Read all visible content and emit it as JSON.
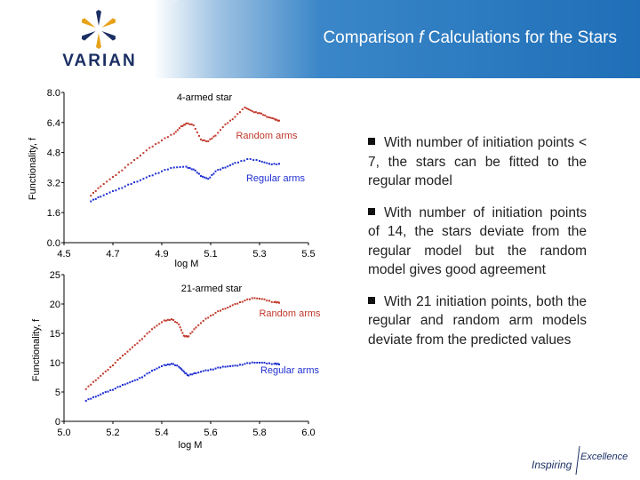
{
  "header": {
    "logo_text": "VARIAN",
    "title_pre": "Comparison ",
    "title_italic": "f",
    "title_post": " Calculations for the Stars"
  },
  "bullets": [
    "With number of initiation points < 7, the stars can be fitted to the regular model",
    "With number of initiation points of 14, the stars deviate from the regular model but the random model gives good agreement",
    "With 21 initiation points, both the regular and random arm models deviate from the predicted values"
  ],
  "footer": {
    "logo_text_1": "Inspiring",
    "logo_text_2": "Excellence"
  },
  "colors": {
    "random": "#c0392b",
    "regular": "#1f2fd0"
  },
  "chart_data": [
    {
      "type": "scatter",
      "title": "4-armed star",
      "xlabel": "log M",
      "ylabel": "Functionality, f",
      "xlim": [
        4.5,
        5.5
      ],
      "ylim": [
        0.0,
        8.0
      ],
      "xticks": [
        "4.5",
        "4.7",
        "4.9",
        "5.1",
        "5.3",
        "5.5"
      ],
      "yticks": [
        "0.0",
        "1.6",
        "3.2",
        "4.8",
        "6.4",
        "8.0"
      ],
      "series": [
        {
          "name": "Random arms",
          "color": "#c0392b",
          "points": [
            [
              4.61,
              2.5
            ],
            [
              4.65,
              3.0
            ],
            [
              4.7,
              3.5
            ],
            [
              4.75,
              4.0
            ],
            [
              4.8,
              4.5
            ],
            [
              4.85,
              5.05
            ],
            [
              4.9,
              5.45
            ],
            [
              4.95,
              5.8
            ],
            [
              4.98,
              6.2
            ],
            [
              5.0,
              6.35
            ],
            [
              5.03,
              6.25
            ],
            [
              5.06,
              5.5
            ],
            [
              5.09,
              5.4
            ],
            [
              5.12,
              5.7
            ],
            [
              5.16,
              6.3
            ],
            [
              5.2,
              6.7
            ],
            [
              5.24,
              7.2
            ],
            [
              5.27,
              7.0
            ],
            [
              5.3,
              6.9
            ],
            [
              5.33,
              6.7
            ],
            [
              5.36,
              6.6
            ],
            [
              5.38,
              6.5
            ]
          ]
        },
        {
          "name": "Regular arms",
          "color": "#1f2fd0",
          "points": [
            [
              4.61,
              2.2
            ],
            [
              4.65,
              2.45
            ],
            [
              4.7,
              2.75
            ],
            [
              4.75,
              3.0
            ],
            [
              4.8,
              3.25
            ],
            [
              4.85,
              3.55
            ],
            [
              4.9,
              3.8
            ],
            [
              4.95,
              4.0
            ],
            [
              5.0,
              4.05
            ],
            [
              5.03,
              3.9
            ],
            [
              5.06,
              3.55
            ],
            [
              5.09,
              3.4
            ],
            [
              5.12,
              3.8
            ],
            [
              5.16,
              4.0
            ],
            [
              5.2,
              4.25
            ],
            [
              5.25,
              4.45
            ],
            [
              5.3,
              4.35
            ],
            [
              5.34,
              4.2
            ],
            [
              5.38,
              4.2
            ]
          ]
        }
      ]
    },
    {
      "type": "scatter",
      "title": "21-armed star",
      "xlabel": "log M",
      "ylabel": "Functionality, f",
      "xlim": [
        5.0,
        6.0
      ],
      "ylim": [
        0,
        25
      ],
      "xticks": [
        "5.0",
        "5.2",
        "5.4",
        "5.6",
        "5.8",
        "6.0"
      ],
      "yticks": [
        "0",
        "5",
        "10",
        "15",
        "20",
        "25"
      ],
      "series": [
        {
          "name": "Random arms",
          "color": "#c0392b",
          "points": [
            [
              5.09,
              5.5
            ],
            [
              5.13,
              7.0
            ],
            [
              5.17,
              8.5
            ],
            [
              5.21,
              10.0
            ],
            [
              5.25,
              11.5
            ],
            [
              5.29,
              13.0
            ],
            [
              5.33,
              14.5
            ],
            [
              5.37,
              16.0
            ],
            [
              5.41,
              17.2
            ],
            [
              5.44,
              17.4
            ],
            [
              5.47,
              16.5
            ],
            [
              5.49,
              14.6
            ],
            [
              5.51,
              14.5
            ],
            [
              5.54,
              16.0
            ],
            [
              5.58,
              17.5
            ],
            [
              5.62,
              18.5
            ],
            [
              5.66,
              19.2
            ],
            [
              5.7,
              20.0
            ],
            [
              5.74,
              20.6
            ],
            [
              5.78,
              21.0
            ],
            [
              5.82,
              20.8
            ],
            [
              5.86,
              20.3
            ],
            [
              5.88,
              20.2
            ]
          ]
        },
        {
          "name": "Regular arms",
          "color": "#1f2fd0",
          "points": [
            [
              5.09,
              3.5
            ],
            [
              5.13,
              4.2
            ],
            [
              5.17,
              5.0
            ],
            [
              5.21,
              5.6
            ],
            [
              5.25,
              6.3
            ],
            [
              5.29,
              7.0
            ],
            [
              5.33,
              7.8
            ],
            [
              5.37,
              8.8
            ],
            [
              5.41,
              9.6
            ],
            [
              5.44,
              9.8
            ],
            [
              5.47,
              9.3
            ],
            [
              5.49,
              8.5
            ],
            [
              5.51,
              7.8
            ],
            [
              5.54,
              8.2
            ],
            [
              5.58,
              8.7
            ],
            [
              5.62,
              9.0
            ],
            [
              5.66,
              9.3
            ],
            [
              5.7,
              9.5
            ],
            [
              5.74,
              9.8
            ],
            [
              5.78,
              10.0
            ],
            [
              5.82,
              10.0
            ],
            [
              5.86,
              9.8
            ],
            [
              5.88,
              9.7
            ]
          ]
        }
      ]
    }
  ]
}
